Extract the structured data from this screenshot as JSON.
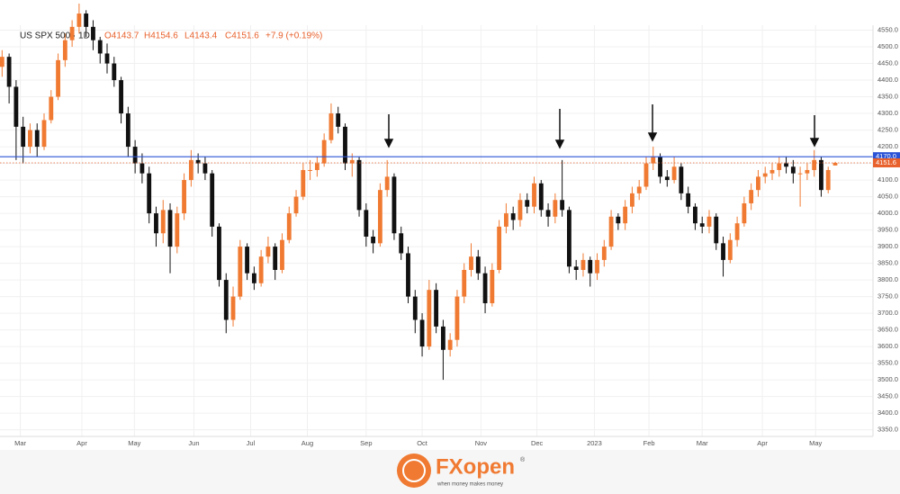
{
  "chart_data": {
    "type": "candlestick",
    "header": {
      "symbol": "US SPX 500 · 1D",
      "ohlc": [
        "O4143.7",
        "H4154.6",
        "L4143.4",
        "C4151.6"
      ],
      "change": "+7.9 (+0.19%)"
    },
    "up_color": "#f07a32",
    "down_color": "#111111",
    "open": [
      4440,
      4470,
      4380,
      4260,
      4200,
      4250,
      4200,
      4280,
      4350,
      4460,
      4520,
      4560,
      4600,
      4560,
      4520,
      4480,
      4450,
      4400,
      4300,
      4200,
      4150,
      4120,
      4000,
      3940,
      4010,
      3900,
      4000,
      4100,
      4160,
      4150,
      4120,
      3960,
      3800,
      3680,
      3750,
      3900,
      3820,
      3790,
      3870,
      3900,
      3830,
      3920,
      4000,
      4050,
      4130,
      4130,
      4150,
      4220,
      4300,
      4260,
      4150,
      4160,
      4010,
      3930,
      3910,
      4070,
      4110,
      3940,
      3880,
      3750,
      3680,
      3600,
      3770,
      3660,
      3590,
      3620,
      3750,
      3830,
      3870,
      3820,
      3730,
      3830,
      3960,
      4000,
      3980,
      4040,
      4020,
      4090,
      4010,
      3990,
      4040,
      4010,
      3840,
      3830,
      3860,
      3820,
      3860,
      3900,
      3990,
      3970,
      4020,
      4060,
      4080,
      4150,
      4170,
      4110,
      4100,
      4140,
      4060,
      4020,
      3970,
      3960,
      3990,
      3910,
      3860,
      3920,
      3970,
      4030,
      4070,
      4110,
      4120,
      4130,
      4150,
      4140,
      4120,
      4120,
      4130,
      4160,
      4070,
      4143.7
    ],
    "high": [
      4490,
      4480,
      4400,
      4290,
      4270,
      4270,
      4300,
      4370,
      4480,
      4540,
      4580,
      4630,
      4610,
      4580,
      4530,
      4510,
      4470,
      4410,
      4320,
      4220,
      4180,
      4140,
      4020,
      4040,
      4030,
      4020,
      4120,
      4190,
      4180,
      4170,
      4130,
      3970,
      3820,
      3780,
      3920,
      3910,
      3840,
      3890,
      3930,
      3910,
      3940,
      4020,
      4070,
      4150,
      4160,
      4170,
      4240,
      4330,
      4320,
      4270,
      4180,
      4170,
      4030,
      3950,
      4090,
      4160,
      4120,
      3960,
      3900,
      3770,
      3700,
      3800,
      3790,
      3680,
      3640,
      3770,
      3850,
      3910,
      3890,
      3840,
      3850,
      3980,
      4030,
      4020,
      4060,
      4060,
      4110,
      4100,
      4030,
      4060,
      4160,
      4020,
      3860,
      3880,
      3870,
      3880,
      3920,
      4010,
      4000,
      4040,
      4080,
      4100,
      4170,
      4200,
      4180,
      4130,
      4170,
      4150,
      4080,
      4030,
      3990,
      4010,
      4000,
      3930,
      3940,
      3990,
      4050,
      4090,
      4130,
      4140,
      4150,
      4170,
      4170,
      4160,
      4140,
      4150,
      4190,
      4170,
      4140,
      4154.6
    ],
    "low": [
      4410,
      4330,
      4160,
      4150,
      4180,
      4170,
      4190,
      4270,
      4340,
      4440,
      4500,
      4540,
      4530,
      4490,
      4450,
      4420,
      4380,
      4270,
      4170,
      4120,
      4090,
      3970,
      3900,
      3910,
      3820,
      3880,
      3980,
      4080,
      4120,
      4100,
      3930,
      3780,
      3640,
      3660,
      3740,
      3800,
      3770,
      3780,
      3850,
      3800,
      3820,
      3910,
      3990,
      4040,
      4100,
      4110,
      4140,
      4210,
      4240,
      4130,
      4110,
      3990,
      3900,
      3880,
      3900,
      4050,
      3920,
      3860,
      3730,
      3640,
      3570,
      3590,
      3640,
      3500,
      3570,
      3600,
      3730,
      3810,
      3800,
      3700,
      3720,
      3820,
      3940,
      3950,
      3960,
      4000,
      4000,
      3990,
      3960,
      3970,
      3990,
      3820,
      3800,
      3810,
      3780,
      3800,
      3840,
      3890,
      3950,
      3950,
      4000,
      4040,
      4070,
      4130,
      4090,
      4080,
      4090,
      4040,
      4000,
      3950,
      3940,
      3940,
      3890,
      3810,
      3850,
      3900,
      3960,
      4010,
      4050,
      4090,
      4100,
      4110,
      4120,
      4090,
      4020,
      4100,
      4110,
      4050,
      4060,
      4143.4
    ],
    "close": [
      4470,
      4380,
      4260,
      4200,
      4250,
      4200,
      4280,
      4350,
      4460,
      4520,
      4560,
      4600,
      4560,
      4520,
      4480,
      4450,
      4400,
      4300,
      4200,
      4150,
      4120,
      4000,
      3940,
      4010,
      3900,
      4000,
      4100,
      4160,
      4150,
      4120,
      3960,
      3800,
      3680,
      3750,
      3900,
      3820,
      3790,
      3870,
      3900,
      3830,
      3920,
      4000,
      4050,
      4130,
      4130,
      4150,
      4220,
      4300,
      4260,
      4150,
      4160,
      4010,
      3930,
      3910,
      4070,
      4110,
      3940,
      3880,
      3750,
      3680,
      3600,
      3770,
      3660,
      3590,
      3620,
      3750,
      3830,
      3870,
      3820,
      3730,
      3830,
      3960,
      4000,
      3980,
      4040,
      4020,
      4090,
      4010,
      3990,
      4040,
      4010,
      3840,
      3830,
      3860,
      3820,
      3860,
      3900,
      3990,
      3970,
      4020,
      4060,
      4080,
      4150,
      4170,
      4110,
      4100,
      4140,
      4060,
      4020,
      3970,
      3960,
      3990,
      3910,
      3860,
      3920,
      3970,
      4030,
      4070,
      4110,
      4120,
      4130,
      4150,
      4140,
      4120,
      4120,
      4130,
      4160,
      4070,
      4130,
      4151.6
    ],
    "xlim": [
      -0.3,
      124.4
    ],
    "xticks": [
      {
        "value": 2.6,
        "label": "Mar"
      },
      {
        "value": 11.4,
        "label": "Apr"
      },
      {
        "value": 18.9,
        "label": "May"
      },
      {
        "value": 27.4,
        "label": "Jun"
      },
      {
        "value": 35.5,
        "label": "Jul"
      },
      {
        "value": 43.6,
        "label": "Aug"
      },
      {
        "value": 52,
        "label": "Sep"
      },
      {
        "value": 60,
        "label": "Oct"
      },
      {
        "value": 68.4,
        "label": "Nov"
      },
      {
        "value": 76.4,
        "label": "Dec"
      },
      {
        "value": 84.6,
        "label": "2023"
      },
      {
        "value": 92.4,
        "label": "Feb"
      },
      {
        "value": 100,
        "label": "Mar"
      },
      {
        "value": 108.6,
        "label": "Apr"
      },
      {
        "value": 116.2,
        "label": "May"
      }
    ],
    "ylim": [
      3330,
      4565
    ],
    "yticks": [
      {
        "value": 3350,
        "label": "3350.0"
      },
      {
        "value": 3400,
        "label": "3400.0"
      },
      {
        "value": 3450,
        "label": "3450.0"
      },
      {
        "value": 3500,
        "label": "3500.0"
      },
      {
        "value": 3550,
        "label": "3550.0"
      },
      {
        "value": 3600,
        "label": "3600.0"
      },
      {
        "value": 3650,
        "label": "3650.0"
      },
      {
        "value": 3700,
        "label": "3700.0"
      },
      {
        "value": 3750,
        "label": "3750.0"
      },
      {
        "value": 3800,
        "label": "3800.0"
      },
      {
        "value": 3850,
        "label": "3850.0"
      },
      {
        "value": 3900,
        "label": "3900.0"
      },
      {
        "value": 3950,
        "label": "3950.0"
      },
      {
        "value": 4000,
        "label": "4000.0"
      },
      {
        "value": 4050,
        "label": "4050.0"
      },
      {
        "value": 4100,
        "label": "4100.0"
      },
      {
        "value": 4150,
        "label": "4150.0"
      },
      {
        "value": 4200,
        "label": "4200.0"
      },
      {
        "value": 4250,
        "label": "4250.0"
      },
      {
        "value": 4300,
        "label": "4300.0"
      },
      {
        "value": 4350,
        "label": "4350.0"
      },
      {
        "value": 4400,
        "label": "4400.0"
      },
      {
        "value": 4450,
        "label": "4450.0"
      },
      {
        "value": 4500,
        "label": "4500.0"
      },
      {
        "value": 4550,
        "label": "4550.0"
      }
    ],
    "grid": true,
    "hlines": [
      {
        "value": 4170,
        "label": "4170.0",
        "color": "#2a52d6",
        "style": "solid"
      },
      {
        "value": 4151.6,
        "label": "4151.6",
        "color": "#e8612c",
        "style": "dotted"
      }
    ]
  },
  "logo": {
    "name": "FXopen",
    "tagline": "when money makes money"
  }
}
